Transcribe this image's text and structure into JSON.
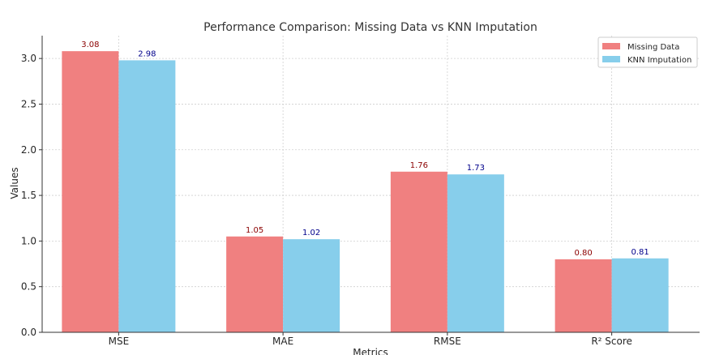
{
  "chart_data": {
    "type": "bar",
    "title": "Performance Comparison: Missing Data vs KNN Imputation",
    "xlabel": "Metrics",
    "ylabel": "Values",
    "categories": [
      "MSE",
      "MAE",
      "RMSE",
      "R² Score"
    ],
    "series": [
      {
        "name": "Missing Data",
        "values": [
          3.08,
          1.05,
          1.76,
          0.8
        ],
        "labels": [
          "3.08",
          "1.05",
          "1.76",
          "0.80"
        ],
        "color": "#f08080",
        "label_color": "#8b0000"
      },
      {
        "name": "KNN Imputation",
        "values": [
          2.98,
          1.02,
          1.73,
          0.81
        ],
        "labels": [
          "2.98",
          "1.02",
          "1.73",
          "0.81"
        ],
        "color": "#87ceeb",
        "label_color": "#00008b"
      }
    ],
    "ylim": [
      0,
      3.25
    ],
    "yticks": [
      "0.0",
      "0.5",
      "1.0",
      "1.5",
      "2.0",
      "2.5",
      "3.0"
    ],
    "ytick_values": [
      0,
      0.5,
      1.0,
      1.5,
      2.0,
      2.5,
      3.0
    ],
    "grid": true,
    "legend_position": "top-right"
  }
}
